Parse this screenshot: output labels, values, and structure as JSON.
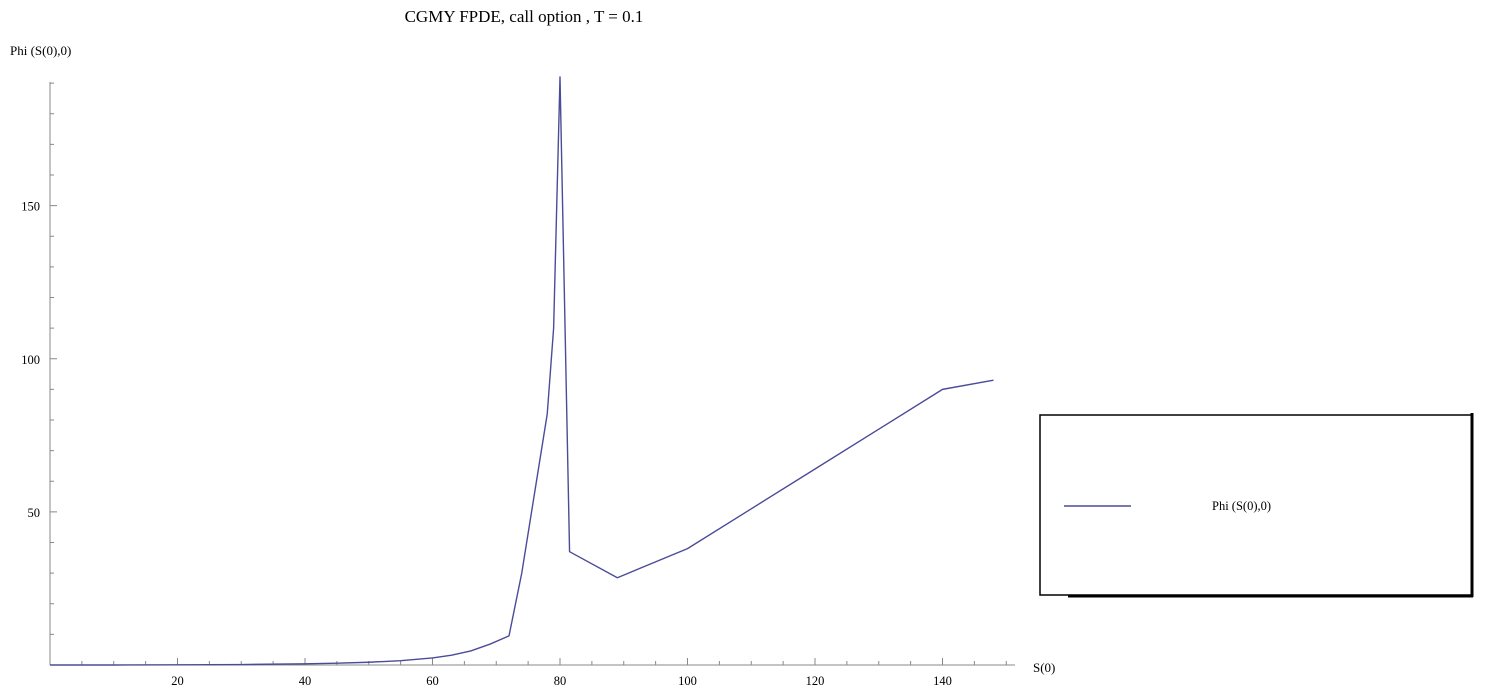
{
  "chart_data": {
    "type": "line",
    "title": "CGMY FPDE, call option , T = 0.1",
    "xlabel": "S(0)",
    "ylabel": "Phi (S(0),0)",
    "xlim": [
      0,
      150
    ],
    "ylim": [
      0,
      192
    ],
    "x_ticks": [
      20,
      40,
      60,
      80,
      100,
      120,
      140
    ],
    "y_ticks": [
      50,
      100,
      150
    ],
    "x_minor_step": 5,
    "y_minor_step": 10,
    "grid": false,
    "legend_position": "right",
    "series": [
      {
        "name": "Phi (S(0),0)",
        "color": "#4b4b9a",
        "points": [
          [
            0,
            0
          ],
          [
            10,
            0
          ],
          [
            20,
            0.05
          ],
          [
            30,
            0.15
          ],
          [
            40,
            0.4
          ],
          [
            45,
            0.6
          ],
          [
            50,
            0.9
          ],
          [
            55,
            1.4
          ],
          [
            60,
            2.3
          ],
          [
            63,
            3.2
          ],
          [
            66,
            4.6
          ],
          [
            69,
            6.8
          ],
          [
            72,
            9.5
          ],
          [
            74,
            30
          ],
          [
            76,
            56
          ],
          [
            78,
            82
          ],
          [
            79,
            110
          ],
          [
            80,
            192
          ],
          [
            81.5,
            37
          ],
          [
            89,
            28.5
          ],
          [
            100,
            38
          ],
          [
            110,
            51
          ],
          [
            120,
            64
          ],
          [
            130,
            77
          ],
          [
            140,
            90
          ],
          [
            148,
            93
          ]
        ]
      }
    ]
  }
}
